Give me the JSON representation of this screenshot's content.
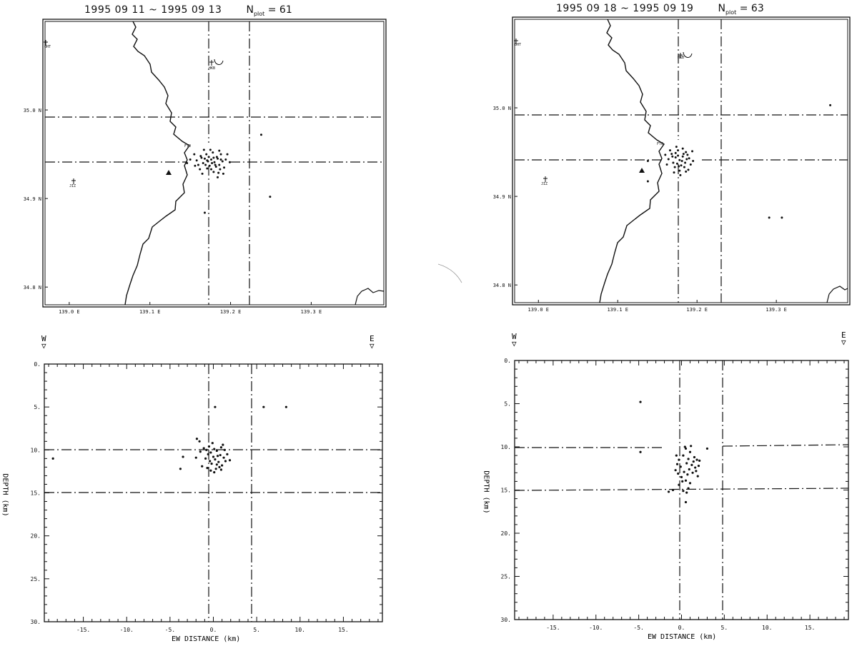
{
  "panels": [
    {
      "title": {
        "date_range": "1995 09 11 ~ 1995 09 13",
        "n_label": "N",
        "n_sub": "plot",
        "n_value": "= 61"
      },
      "map": {
        "lat_ticks": [
          "34.8 N",
          "34.9 N",
          "35.0 N"
        ],
        "lon_ticks": [
          "139.0 E",
          "139.1 E",
          "139.2 E",
          "139.3 E"
        ],
        "stations": [
          "OHT",
          "HKB",
          "JIZ",
          "FTO"
        ]
      },
      "section": {
        "dir_west": "W",
        "dir_east": "E",
        "xlabel": "EW DISTANCE (km)",
        "ylabel": "DEPTH (km)",
        "x_ticks": [
          "-15.",
          "-10.",
          "-5.",
          "0.",
          "5.",
          "10.",
          "15."
        ],
        "y_ticks": [
          "0.",
          "5.",
          "10.",
          "15.",
          "20.",
          "25.",
          "30."
        ]
      }
    },
    {
      "title": {
        "date_range": "1995 09 18 ~ 1995 09 19",
        "n_label": "N",
        "n_sub": "plot",
        "n_value": "= 63"
      },
      "map": {
        "lat_ticks": [
          "34.8 N",
          "34.9 N",
          "35.0 N"
        ],
        "lon_ticks": [
          "139.0 E",
          "139.1 E",
          "139.2 E",
          "139.3 E"
        ],
        "stations": [
          "OHT",
          "HKB",
          "JIZ",
          "FTO"
        ]
      },
      "section": {
        "dir_west": "W",
        "dir_east": "E",
        "xlabel": "EW DISTANCE (km)",
        "ylabel": "DEPTH (km)",
        "x_ticks": [
          "-15.",
          "-10.",
          "-5.",
          "0.",
          "5.",
          "10.",
          "15."
        ],
        "y_ticks": [
          "0.",
          "5.",
          "10.",
          "15.",
          "20.",
          "25.",
          "30."
        ]
      }
    }
  ],
  "chart_data": [
    {
      "type": "scatter",
      "title": "1995 09 11 ~ 1995 09 13",
      "xlabel": "",
      "ylabel": "",
      "xlim": [
        138.97,
        139.39
      ],
      "ylim": [
        34.78,
        35.1
      ],
      "x_ticks": [
        139.0,
        139.1,
        139.2,
        139.3
      ],
      "y_ticks": [
        34.8,
        34.9,
        35.0
      ],
      "grid": false,
      "reference_lines": {
        "x": [
          139.17,
          139.22
        ],
        "y": [
          34.932,
          34.98
        ]
      },
      "series": [
        {
          "values": [
            [
              139.163,
              34.948
            ],
            [
              139.168,
              34.945
            ],
            [
              139.172,
              34.942
            ],
            [
              139.176,
              34.944
            ],
            [
              139.18,
              34.941
            ],
            [
              139.184,
              34.945
            ],
            [
              139.188,
              34.95
            ],
            [
              139.178,
              34.952
            ],
            [
              139.17,
              34.95
            ],
            [
              139.166,
              34.94
            ],
            [
              139.174,
              34.937
            ],
            [
              139.182,
              34.936
            ],
            [
              139.186,
              34.938
            ],
            [
              139.19,
              34.942
            ],
            [
              139.158,
              34.943
            ],
            [
              139.16,
              34.938
            ],
            [
              139.171,
              34.934
            ],
            [
              139.179,
              34.93
            ],
            [
              139.185,
              34.929
            ],
            [
              139.192,
              34.935
            ],
            [
              139.194,
              34.944
            ],
            [
              139.196,
              34.95
            ],
            [
              139.186,
              34.954
            ],
            [
              139.175,
              34.955
            ],
            [
              139.167,
              34.955
            ],
            [
              139.155,
              34.95
            ],
            [
              139.15,
              34.944
            ],
            [
              139.164,
              34.946
            ],
            [
              139.173,
              34.947
            ],
            [
              139.183,
              34.947
            ],
            [
              139.177,
              34.94
            ],
            [
              139.169,
              34.938
            ],
            [
              139.181,
              34.938
            ],
            [
              139.176,
              34.933
            ],
            [
              139.188,
              34.944
            ],
            [
              139.162,
              34.933
            ],
            [
              139.191,
              34.928
            ],
            [
              139.184,
              34.924
            ],
            [
              139.199,
              34.941
            ],
            [
              139.156,
              34.937
            ],
            [
              139.146,
              34.94
            ],
            [
              139.179,
              34.946
            ],
            [
              139.171,
              34.943
            ],
            [
              139.187,
              34.933
            ],
            [
              139.165,
              34.928
            ],
            [
              139.238,
              34.972
            ],
            [
              139.168,
              34.884
            ],
            [
              139.249,
              34.902
            ]
          ]
        }
      ]
    },
    {
      "type": "scatter",
      "title": "1995 09 11 ~ 1995 09 13",
      "xlabel": "EW DISTANCE (km)",
      "ylabel": "DEPTH (km)",
      "xlim": [
        -19.5,
        19.5
      ],
      "ylim": [
        30,
        0
      ],
      "x_ticks": [
        -15,
        -10,
        -5,
        0,
        5,
        10,
        15
      ],
      "y_ticks": [
        0,
        5,
        10,
        15,
        20,
        25,
        30
      ],
      "grid": false,
      "reference_lines": {
        "x": [
          0,
          5
        ],
        "y": [
          10,
          15
        ]
      },
      "series": [
        {
          "values": [
            [
              0.1,
              9.9
            ],
            [
              -0.3,
              10.3
            ],
            [
              0.4,
              10.1
            ],
            [
              0.8,
              10.6
            ],
            [
              -0.6,
              10.5
            ],
            [
              1.2,
              10.9
            ],
            [
              0.2,
              11.1
            ],
            [
              -0.9,
              11.0
            ],
            [
              0.6,
              11.4
            ],
            [
              -0.2,
              11.6
            ],
            [
              1.0,
              11.8
            ],
            [
              -0.5,
              9.6
            ],
            [
              0.9,
              9.7
            ],
            [
              -1.1,
              9.8
            ],
            [
              0.3,
              12.2
            ],
            [
              -0.7,
              12.1
            ],
            [
              1.4,
              11.3
            ],
            [
              -1.5,
              10.2
            ],
            [
              0.0,
              10.8
            ],
            [
              0.5,
              10.7
            ],
            [
              -0.4,
              11.3
            ],
            [
              0.7,
              12.0
            ],
            [
              1.6,
              10.5
            ],
            [
              -1.3,
              11.9
            ],
            [
              0.1,
              12.6
            ],
            [
              -0.1,
              9.2
            ],
            [
              -1.6,
              9.0
            ],
            [
              1.1,
              9.4
            ],
            [
              -0.8,
              10.0
            ],
            [
              0.4,
              11.7
            ],
            [
              1.9,
              11.2
            ],
            [
              -2.0,
              10.9
            ],
            [
              -1.9,
              8.7
            ],
            [
              -3.5,
              10.8
            ],
            [
              -3.8,
              12.2
            ],
            [
              0.2,
              5.0
            ],
            [
              5.8,
              5.0
            ],
            [
              8.4,
              5.0
            ],
            [
              -18.5,
              11.0
            ],
            [
              -0.3,
              12.4
            ],
            [
              0.9,
              12.3
            ],
            [
              1.3,
              10.0
            ]
          ]
        }
      ]
    },
    {
      "type": "scatter",
      "title": "1995 09 18 ~ 1995 09 19",
      "xlabel": "",
      "ylabel": "",
      "xlim": [
        138.97,
        139.39
      ],
      "ylim": [
        34.78,
        35.1
      ],
      "x_ticks": [
        139.0,
        139.1,
        139.2,
        139.3
      ],
      "y_ticks": [
        34.8,
        34.9,
        35.0
      ],
      "grid": false,
      "reference_lines": {
        "x": [
          139.17,
          139.22
        ],
        "y": [
          34.932,
          34.98
        ]
      },
      "series": [
        {
          "values": [
            [
              139.168,
              34.948
            ],
            [
              139.173,
              34.944
            ],
            [
              139.178,
              34.941
            ],
            [
              139.182,
              34.945
            ],
            [
              139.186,
              34.95
            ],
            [
              139.176,
              34.952
            ],
            [
              139.17,
              34.938
            ],
            [
              139.18,
              34.935
            ],
            [
              139.185,
              34.938
            ],
            [
              139.19,
              34.943
            ],
            [
              139.172,
              34.933
            ],
            [
              139.178,
              34.929
            ],
            [
              139.186,
              34.928
            ],
            [
              139.192,
              34.936
            ],
            [
              139.164,
              34.942
            ],
            [
              139.166,
              34.952
            ],
            [
              139.174,
              34.956
            ],
            [
              139.182,
              34.954
            ],
            [
              139.188,
              34.947
            ],
            [
              139.194,
              34.951
            ],
            [
              139.176,
              34.946
            ],
            [
              139.181,
              34.94
            ],
            [
              139.169,
              34.945
            ],
            [
              139.184,
              34.933
            ],
            [
              139.175,
              34.937
            ],
            [
              139.162,
              34.936
            ],
            [
              139.189,
              34.93
            ],
            [
              139.179,
              34.924
            ],
            [
              139.171,
              34.927
            ],
            [
              139.195,
              34.94
            ],
            [
              139.16,
              34.947
            ],
            [
              139.183,
              34.948
            ],
            [
              139.177,
              34.934
            ],
            [
              139.187,
              34.942
            ],
            [
              139.173,
              34.949
            ],
            [
              139.138,
              34.94
            ],
            [
              139.138,
              34.917
            ],
            [
              139.368,
              35.003
            ],
            [
              139.291,
              34.876
            ],
            [
              139.307,
              34.876
            ]
          ]
        }
      ]
    },
    {
      "type": "scatter",
      "title": "1995 09 18 ~ 1995 09 19",
      "xlabel": "EW DISTANCE (km)",
      "ylabel": "DEPTH (km)",
      "xlim": [
        -19.5,
        19.5
      ],
      "ylim": [
        30,
        0
      ],
      "x_ticks": [
        -15,
        -10,
        -5,
        0,
        5,
        10,
        15
      ],
      "y_ticks": [
        0,
        5,
        10,
        15,
        20,
        25,
        30
      ],
      "grid": false,
      "reference_lines": {
        "x": [
          0,
          5
        ],
        "y": [
          10,
          15
        ]
      },
      "series": [
        {
          "values": [
            [
              0.5,
              10.2
            ],
            [
              1.0,
              10.6
            ],
            [
              0.2,
              11.0
            ],
            [
              0.8,
              11.4
            ],
            [
              1.5,
              11.2
            ],
            [
              -0.3,
              11.5
            ],
            [
              0.6,
              11.9
            ],
            [
              1.2,
              12.1
            ],
            [
              -0.1,
              12.3
            ],
            [
              0.9,
              12.6
            ],
            [
              0.3,
              12.9
            ],
            [
              1.6,
              12.4
            ],
            [
              -0.5,
              12.0
            ],
            [
              0.7,
              13.2
            ],
            [
              1.3,
              13.0
            ],
            [
              0.0,
              13.5
            ],
            [
              0.5,
              13.9
            ],
            [
              1.0,
              14.2
            ],
            [
              -0.3,
              14.4
            ],
            [
              0.8,
              14.8
            ],
            [
              0.2,
              15.1
            ],
            [
              1.4,
              11.7
            ],
            [
              1.8,
              11.5
            ],
            [
              2.0,
              12.2
            ],
            [
              -0.6,
              11.0
            ],
            [
              0.4,
              10.0
            ],
            [
              1.1,
              9.9
            ],
            [
              -0.4,
              13.1
            ],
            [
              1.7,
              12.8
            ],
            [
              0.1,
              14.0
            ],
            [
              0.6,
              15.3
            ],
            [
              -1.0,
              15.0
            ],
            [
              -1.5,
              15.2
            ],
            [
              0.5,
              16.4
            ],
            [
              -4.8,
              4.8
            ],
            [
              -4.8,
              10.6
            ],
            [
              3.0,
              10.2
            ],
            [
              2.1,
              11.6
            ],
            [
              -0.7,
              12.7
            ],
            [
              1.9,
              13.4
            ]
          ]
        }
      ]
    }
  ]
}
